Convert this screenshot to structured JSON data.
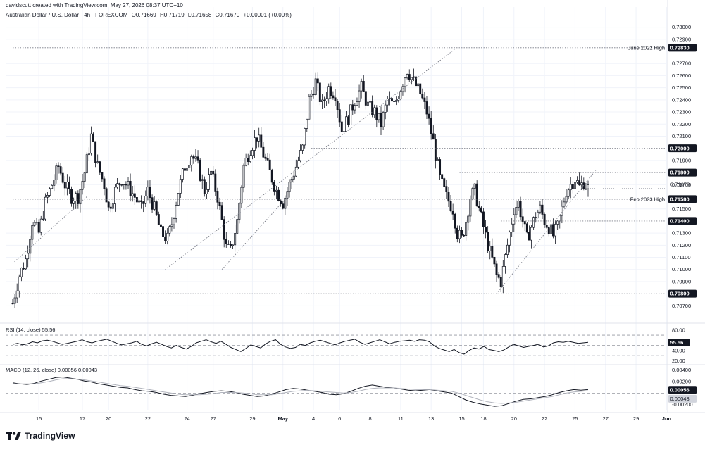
{
  "header": {
    "credit": "davidscutt created with TradingView.com, May 27, 2026 08:37 UTC+10",
    "symbol": "Australian Dollar / U.S. Dollar · 4h · FOREXCOM",
    "open": "O0.71669",
    "high": "H0.71719",
    "low": "L0.71658",
    "close": "C0.71670",
    "change": "+0.00001 (+0.00%)"
  },
  "brand": {
    "name": "TradingView",
    "icon": "tradingview-logo-icon"
  },
  "colors": {
    "candle": "#131722",
    "grid": "#f0f3fa",
    "level_line": "#787b86",
    "badge": "#131722",
    "rsi_line": "#131722",
    "macd_line": "#131722",
    "signal_line": "#b2b5be"
  },
  "chart_data": [
    {
      "type": "candlestick",
      "title": "Australian Dollar / U.S. Dollar · 4h · FOREXCOM",
      "ylim": [
        0.7058,
        0.7305
      ],
      "y_ticks": [
        "0.73000",
        "0.72900",
        "0.72700",
        "0.72600",
        "0.72500",
        "0.72400",
        "0.72300",
        "0.72200",
        "0.72100",
        "0.71900",
        "0.71700",
        "0.71500",
        "0.71300",
        "0.71200",
        "0.71100",
        "0.71000",
        "0.70900",
        "0.70700"
      ],
      "x_ticks": [
        "15",
        "17",
        "20",
        "22",
        "24",
        "27",
        "29",
        "May",
        "4",
        "6",
        "8",
        "11",
        "13",
        "15",
        "18",
        "20",
        "22",
        "25",
        "27",
        "29",
        "Jun"
      ],
      "close_path": [
        [
          0,
          0.7072
        ],
        [
          3,
          0.7095
        ],
        [
          6,
          0.7108
        ],
        [
          9,
          0.714
        ],
        [
          12,
          0.713
        ],
        [
          15,
          0.7155
        ],
        [
          18,
          0.717
        ],
        [
          21,
          0.7185
        ],
        [
          24,
          0.717
        ],
        [
          27,
          0.716
        ],
        [
          30,
          0.716
        ],
        [
          33,
          0.718
        ],
        [
          36,
          0.721
        ],
        [
          39,
          0.7185
        ],
        [
          42,
          0.717
        ],
        [
          44,
          0.715
        ],
        [
          47,
          0.7165
        ],
        [
          50,
          0.7175
        ],
        [
          53,
          0.7168
        ],
        [
          56,
          0.716
        ],
        [
          59,
          0.715
        ],
        [
          62,
          0.7165
        ],
        [
          65,
          0.715
        ],
        [
          68,
          0.713
        ],
        [
          71,
          0.7125
        ],
        [
          73,
          0.7138
        ],
        [
          76,
          0.7165
        ],
        [
          79,
          0.7185
        ],
        [
          82,
          0.7195
        ],
        [
          85,
          0.7185
        ],
        [
          88,
          0.7165
        ],
        [
          91,
          0.718
        ],
        [
          94,
          0.716
        ],
        [
          96,
          0.714
        ],
        [
          98,
          0.7118
        ],
        [
          100,
          0.7115
        ],
        [
          103,
          0.714
        ],
        [
          106,
          0.7185
        ],
        [
          109,
          0.72
        ],
        [
          112,
          0.721
        ],
        [
          115,
          0.7195
        ],
        [
          118,
          0.718
        ],
        [
          121,
          0.7165
        ],
        [
          124,
          0.7155
        ],
        [
          127,
          0.717
        ],
        [
          130,
          0.7185
        ],
        [
          133,
          0.72
        ],
        [
          136,
          0.724
        ],
        [
          139,
          0.7255
        ],
        [
          142,
          0.7235
        ],
        [
          145,
          0.725
        ],
        [
          148,
          0.7245
        ],
        [
          151,
          0.7215
        ],
        [
          154,
          0.7225
        ],
        [
          157,
          0.724
        ],
        [
          160,
          0.725
        ],
        [
          163,
          0.7235
        ],
        [
          166,
          0.723
        ],
        [
          169,
          0.722
        ],
        [
          172,
          0.724
        ],
        [
          175,
          0.7235
        ],
        [
          178,
          0.725
        ],
        [
          181,
          0.7265
        ],
        [
          184,
          0.7255
        ],
        [
          187,
          0.7245
        ],
        [
          190,
          0.723
        ],
        [
          193,
          0.7205
        ],
        [
          196,
          0.7175
        ],
        [
          199,
          0.716
        ],
        [
          202,
          0.715
        ],
        [
          204,
          0.713
        ],
        [
          206,
          0.7125
        ],
        [
          208,
          0.714
        ],
        [
          210,
          0.716
        ],
        [
          212,
          0.7165
        ],
        [
          214,
          0.715
        ],
        [
          216,
          0.7135
        ],
        [
          218,
          0.712
        ],
        [
          220,
          0.7108
        ],
        [
          222,
          0.7095
        ],
        [
          224,
          0.709
        ],
        [
          226,
          0.711
        ],
        [
          228,
          0.713
        ],
        [
          230,
          0.715
        ],
        [
          232,
          0.7155
        ],
        [
          234,
          0.714
        ],
        [
          236,
          0.7125
        ],
        [
          238,
          0.7135
        ],
        [
          240,
          0.7145
        ],
        [
          242,
          0.715
        ],
        [
          244,
          0.714
        ],
        [
          246,
          0.7135
        ],
        [
          248,
          0.7128
        ],
        [
          250,
          0.7135
        ],
        [
          252,
          0.715
        ],
        [
          254,
          0.7165
        ],
        [
          256,
          0.717
        ],
        [
          258,
          0.7175
        ],
        [
          260,
          0.7168
        ],
        [
          262,
          0.7172
        ],
        [
          264,
          0.7167
        ]
      ],
      "trendlines": [
        {
          "from": [
            0,
            0.7105
          ],
          "to": [
            34,
            0.716
          ]
        },
        {
          "from": [
            70,
            0.71
          ],
          "to": [
            203,
            0.7282
          ]
        },
        {
          "from": [
            96,
            0.71
          ],
          "to": [
            126,
            0.716
          ]
        },
        {
          "from": [
            222,
            0.708
          ],
          "to": [
            268,
            0.7183
          ]
        }
      ],
      "levels": [
        {
          "value": 0.7283,
          "badge": "0.72830",
          "label": "June 2022 High",
          "x_start": 0
        },
        {
          "value": 0.72,
          "badge": "0.72000",
          "label": "",
          "x_start": 137
        },
        {
          "value": 0.718,
          "badge": "0.71800",
          "label": "",
          "x_start": 205
        },
        {
          "value": 0.7158,
          "badge": "0.71580",
          "label": "Feb 2023 High",
          "x_start": 0
        },
        {
          "value": 0.714,
          "badge": "0.71400",
          "label": "",
          "x_start": 224
        },
        {
          "value": 0.708,
          "badge": "0.70800",
          "label": "",
          "x_start": 0
        }
      ],
      "last_price": {
        "value": 0.7167,
        "label": "0.71670"
      }
    },
    {
      "type": "line",
      "title": "RSI (14, close) 55.56",
      "ylim": [
        15,
        88
      ],
      "y_ticks": [
        "80.00",
        "60.00",
        "40.00",
        "20.00"
      ],
      "bands": [
        70,
        50,
        30
      ],
      "values": [
        52,
        54,
        51,
        53,
        57,
        55,
        59,
        60,
        58,
        55,
        52,
        54,
        56,
        58,
        61,
        57,
        55,
        58,
        60,
        62,
        58,
        54,
        51,
        53,
        55,
        58,
        52,
        49,
        53,
        56,
        52,
        48,
        45,
        50,
        46,
        43,
        48,
        55,
        58,
        61,
        57,
        54,
        58,
        52,
        46,
        42,
        38,
        44,
        51,
        48,
        45,
        53,
        58,
        61,
        52,
        47,
        44,
        46,
        52,
        50,
        55,
        58,
        60,
        57,
        54,
        51,
        55,
        58,
        60,
        62,
        56,
        52,
        55,
        58,
        61,
        57,
        53,
        56,
        58,
        59,
        60,
        58,
        61,
        60,
        57,
        49,
        44,
        41,
        38,
        42,
        36,
        33,
        40,
        45,
        43,
        48,
        42,
        40,
        38,
        41,
        47,
        52,
        49,
        46,
        48,
        50,
        52,
        47,
        49,
        55,
        57,
        56,
        58,
        56,
        54,
        55,
        56
      ],
      "last": {
        "value": 55.56,
        "label": "55.56"
      }
    },
    {
      "type": "line",
      "title": "MACD (12, 26, close) 0.00056 0.00043",
      "ylim": [
        -0.0029,
        0.0047
      ],
      "y_ticks": [
        "0.00400",
        "0.00200",
        "-0.00200"
      ],
      "zero_line": 0,
      "series": [
        {
          "values": [
            0.0018,
            0.0016,
            0.0015,
            0.0017,
            0.0021,
            0.0024,
            0.0027,
            0.0028,
            0.0026,
            0.0024,
            0.0021,
            0.0019,
            0.0016,
            0.0014,
            0.0012,
            0.001,
            0.0009,
            0.0006,
            0.0004,
            0.0003,
            0.0001,
            -0.0002,
            -0.0004,
            -0.0005,
            -0.0006,
            -0.0004,
            -0.0001,
            0.0001,
            0.0003,
            0.0004,
            0.0003,
            0.0001,
            -0.0002,
            -0.0004,
            -0.0006,
            -0.0005,
            -0.0002,
            0.0002,
            0.0006,
            0.0008,
            0.0007,
            0.0005,
            0.0003,
            0.0001,
            -0.0002,
            -0.0003,
            -0.0001,
            0.0003,
            0.0008,
            0.0012,
            0.0014,
            0.0012,
            0.001,
            0.0009,
            0.0007,
            0.0005,
            0.0004,
            0.0005,
            0.0006,
            0.0004,
            0.0002,
            0.0,
            -0.0006,
            -0.0012,
            -0.0016,
            -0.0019,
            -0.0021,
            -0.0023,
            -0.0022,
            -0.0018,
            -0.0014,
            -0.0011,
            -0.001,
            -0.0008,
            -0.0006,
            -0.0003,
            0.0001,
            0.0004,
            0.0006,
            0.0005,
            0.0006
          ]
        },
        {
          "values": [
            0.0016,
            0.0016,
            0.0016,
            0.0016,
            0.0018,
            0.002,
            0.0023,
            0.0025,
            0.0025,
            0.0024,
            0.0023,
            0.0021,
            0.0019,
            0.0017,
            0.0015,
            0.0013,
            0.0012,
            0.001,
            0.0008,
            0.0006,
            0.0004,
            0.0002,
            0.0,
            -0.0002,
            -0.0003,
            -0.0003,
            -0.0003,
            -0.0002,
            -0.0001,
            0.0001,
            0.0001,
            0.0001,
            0.0,
            -0.0001,
            -0.0003,
            -0.0003,
            -0.0003,
            -0.0001,
            0.0001,
            0.0003,
            0.0004,
            0.0005,
            0.0004,
            0.0003,
            0.0002,
            0.0001,
            0.0,
            0.0001,
            0.0003,
            0.0006,
            0.0008,
            0.0009,
            0.0009,
            0.0009,
            0.0008,
            0.0007,
            0.0006,
            0.0006,
            0.0006,
            0.0005,
            0.0004,
            0.0003,
            0.0,
            -0.0004,
            -0.0008,
            -0.0012,
            -0.0015,
            -0.0017,
            -0.0018,
            -0.0017,
            -0.0016,
            -0.0014,
            -0.0012,
            -0.001,
            -0.0008,
            -0.0006,
            -0.0003,
            0.0,
            0.0002,
            0.0003,
            0.0004
          ]
        }
      ],
      "last": {
        "macd": "0.00056",
        "signal": "0.00043"
      }
    }
  ]
}
